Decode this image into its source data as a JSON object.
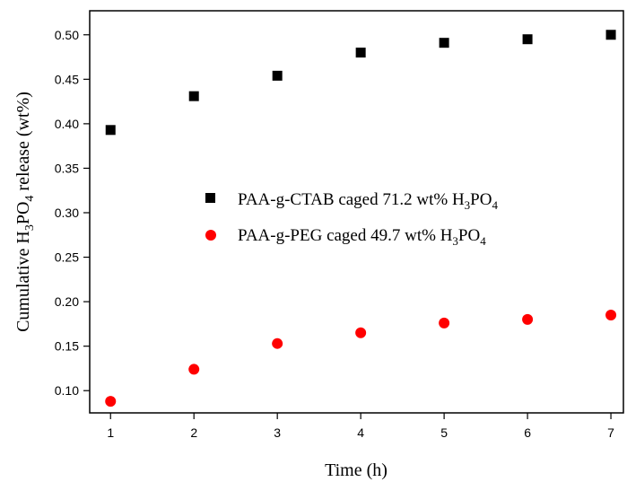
{
  "chart_data": {
    "type": "scatter",
    "title": "",
    "xlabel": "Time (h)",
    "ylabel": {
      "prefix": "Cumulative H",
      "sub1": "3",
      "mid": "PO",
      "sub2": "4",
      "suffix": " release (wt%)"
    },
    "xlim": [
      0.75,
      7.15
    ],
    "ylim": [
      0.075,
      0.527
    ],
    "xticks": [
      1,
      2,
      3,
      4,
      5,
      6,
      7
    ],
    "yticks": [
      0.1,
      0.15,
      0.2,
      0.25,
      0.3,
      0.35,
      0.4,
      0.45,
      0.5
    ],
    "ytick_labels": [
      "0.10",
      "0.15",
      "0.20",
      "0.25",
      "0.30",
      "0.35",
      "0.40",
      "0.45",
      "0.50"
    ],
    "xtick_labels": [
      "1",
      "2",
      "3",
      "4",
      "5",
      "6",
      "7"
    ],
    "grid": false,
    "legend_position": "center-right",
    "series": [
      {
        "name": "PAA-g-CTAB caged 71.2 wt% H3PO4",
        "legend": {
          "prefix": "PAA-g-CTAB caged 71.2 wt% H",
          "sub1": "3",
          "mid": "PO",
          "sub2": "4"
        },
        "marker": "square",
        "color": "#000000",
        "x": [
          1,
          2,
          3,
          4,
          5,
          6,
          7
        ],
        "values": [
          0.393,
          0.431,
          0.454,
          0.48,
          0.491,
          0.495,
          0.5
        ]
      },
      {
        "name": "PAA-g-PEG caged 49.7 wt% H3PO4",
        "legend": {
          "prefix": "PAA-g-PEG caged 49.7 wt% H",
          "sub1": "3",
          "mid": "PO",
          "sub2": "4"
        },
        "marker": "circle",
        "color": "#ff0000",
        "x": [
          1,
          2,
          3,
          4,
          5,
          6,
          7
        ],
        "values": [
          0.088,
          0.124,
          0.153,
          0.165,
          0.176,
          0.18,
          0.185
        ]
      }
    ]
  }
}
